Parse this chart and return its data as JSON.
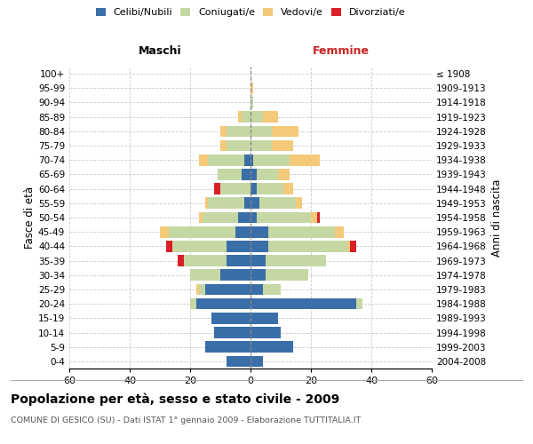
{
  "age_groups": [
    "0-4",
    "5-9",
    "10-14",
    "15-19",
    "20-24",
    "25-29",
    "30-34",
    "35-39",
    "40-44",
    "45-49",
    "50-54",
    "55-59",
    "60-64",
    "65-69",
    "70-74",
    "75-79",
    "80-84",
    "85-89",
    "90-94",
    "95-99",
    "100+"
  ],
  "birth_years": [
    "2004-2008",
    "1999-2003",
    "1994-1998",
    "1989-1993",
    "1984-1988",
    "1979-1983",
    "1974-1978",
    "1969-1973",
    "1964-1968",
    "1959-1963",
    "1954-1958",
    "1949-1953",
    "1944-1948",
    "1939-1943",
    "1934-1938",
    "1929-1933",
    "1924-1928",
    "1919-1923",
    "1914-1918",
    "1909-1913",
    "≤ 1908"
  ],
  "males_celibi": [
    8,
    15,
    12,
    13,
    18,
    15,
    10,
    8,
    8,
    5,
    4,
    2,
    0,
    3,
    2,
    0,
    0,
    0,
    0,
    0,
    0
  ],
  "males_coniugati": [
    0,
    0,
    0,
    0,
    2,
    2,
    10,
    14,
    18,
    22,
    12,
    12,
    10,
    8,
    12,
    8,
    8,
    3,
    0,
    0,
    0
  ],
  "males_vedovi": [
    0,
    0,
    0,
    0,
    0,
    1,
    0,
    0,
    0,
    3,
    1,
    1,
    0,
    0,
    3,
    2,
    2,
    1,
    0,
    0,
    0
  ],
  "males_divorziati": [
    0,
    0,
    0,
    0,
    0,
    0,
    0,
    2,
    2,
    0,
    0,
    0,
    2,
    0,
    0,
    0,
    0,
    0,
    0,
    0,
    0
  ],
  "females_nubili": [
    4,
    14,
    10,
    9,
    35,
    4,
    5,
    5,
    6,
    6,
    2,
    3,
    2,
    2,
    1,
    0,
    0,
    0,
    0,
    0,
    0
  ],
  "females_coniugate": [
    0,
    0,
    0,
    0,
    2,
    6,
    14,
    20,
    26,
    22,
    18,
    12,
    9,
    7,
    12,
    7,
    7,
    4,
    1,
    0,
    0
  ],
  "females_vedove": [
    0,
    0,
    0,
    0,
    0,
    0,
    0,
    0,
    1,
    3,
    2,
    2,
    3,
    4,
    10,
    7,
    9,
    5,
    0,
    1,
    0
  ],
  "females_divorziate": [
    0,
    0,
    0,
    0,
    0,
    0,
    0,
    0,
    2,
    0,
    1,
    0,
    0,
    0,
    0,
    0,
    0,
    0,
    0,
    0,
    0
  ],
  "color_celibi": "#3A6EA8",
  "color_coniugati": "#C5D8A4",
  "color_vedovi": "#F5C97A",
  "color_divorziati": "#D92027",
  "xlim": 60,
  "title": "Popolazione per età, sesso e stato civile - 2009",
  "subtitle": "COMUNE DI GESICO (SU) - Dati ISTAT 1° gennaio 2009 - Elaborazione TUTTITALIA.IT",
  "label_maschi": "Maschi",
  "label_femmine": "Femmine",
  "ylabel_left": "Fasce di età",
  "ylabel_right": "Anni di nascita",
  "legend_labels": [
    "Celibi/Nubili",
    "Coniugati/e",
    "Vedovi/e",
    "Divorziati/e"
  ]
}
